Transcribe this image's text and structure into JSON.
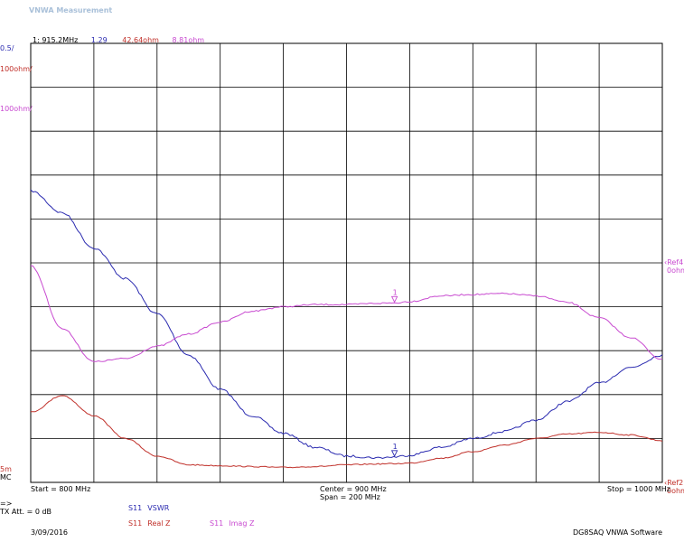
{
  "window_title": "VNWA Measurement",
  "marker_readout": {
    "label": "1:",
    "freq": "915.2MHz",
    "vswr": "1.29",
    "real": "42.64ohm",
    "imag": "8.81ohm"
  },
  "scale_labels": {
    "vswr": "0.5/",
    "real": "100ohm/",
    "imag": "100ohm/"
  },
  "bottom_left_labels": {
    "line1": "5m",
    "line2": "MC"
  },
  "ref_labels": {
    "imag_ref": "Ref4",
    "imag_ref_value": "0ohm",
    "real_ref": "Ref2",
    "real_ref_value": "0ohm"
  },
  "axis_labels": {
    "start": "Start = 800 MHz",
    "center": "Center = 900 MHz",
    "span": "Span = 200 MHz",
    "stop": "Stop = 1000 MHz"
  },
  "tx_info": {
    "arrow": "=>",
    "text": "TX Att. = 0 dB"
  },
  "legend": [
    {
      "param": "S11",
      "name": "VSWR",
      "color": "#2b2bb0"
    },
    {
      "param": "S11",
      "name": "Real Z",
      "color": "#c0302a"
    },
    {
      "param": "S11",
      "name": "Imag Z",
      "color": "#c84ad0"
    }
  ],
  "footer": {
    "date": "3/09/2016",
    "software": "DG8SAQ VNWA Software"
  },
  "marker_number": "1",
  "chart_data": {
    "type": "line",
    "x_unit": "MHz",
    "xlim": [
      800,
      1000
    ],
    "grid": true,
    "divisions": {
      "x": 10,
      "y": 10
    },
    "x": [
      800,
      810,
      820,
      830,
      840,
      850,
      860,
      870,
      880,
      890,
      900,
      910,
      915.2,
      920,
      930,
      940,
      950,
      960,
      970,
      980,
      990,
      1000
    ],
    "series": [
      {
        "name": "VSWR",
        "color": "#2b2bb0",
        "ylim": [
          1.0,
          6.0
        ],
        "values": [
          4.32,
          4.07,
          3.67,
          3.32,
          2.92,
          2.45,
          2.06,
          1.76,
          1.56,
          1.4,
          1.3,
          1.28,
          1.29,
          1.31,
          1.4,
          1.5,
          1.58,
          1.71,
          1.92,
          2.13,
          2.31,
          2.45
        ]
      },
      {
        "name": "Real Z",
        "color": "#c0302a",
        "ylim": [
          0,
          1000
        ],
        "values": [
          160,
          198,
          152,
          100,
          60,
          40,
          38,
          36,
          34,
          36,
          40,
          42,
          42.64,
          44,
          55,
          70,
          85,
          100,
          110,
          114,
          108,
          95
        ]
      },
      {
        "name": "Imag Z",
        "color": "#c84ad0",
        "ylim": [
          -400,
          600
        ],
        "values": [
          93,
          -50,
          -125,
          -118,
          -90,
          -62,
          -35,
          -10,
          0,
          5,
          5,
          8,
          8.81,
          12,
          25,
          28,
          30,
          25,
          10,
          -25,
          -70,
          -120
        ]
      }
    ]
  }
}
